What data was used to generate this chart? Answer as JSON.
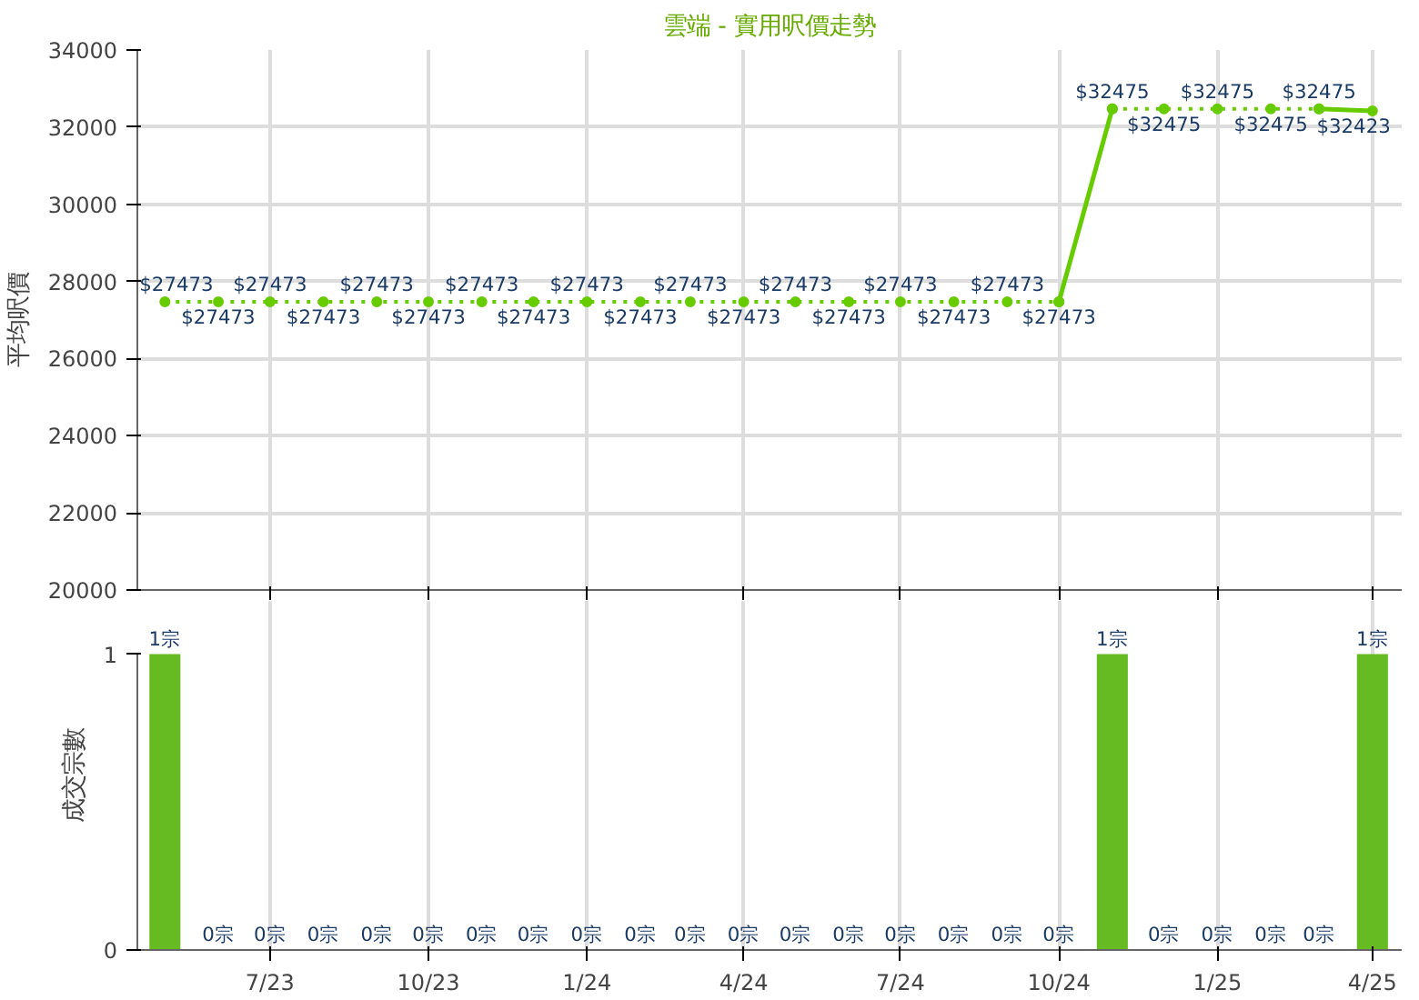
{
  "chart_data": [
    {
      "type": "line",
      "title": "雲端 - 實用呎價走勢",
      "ylabel": "平均呎價",
      "xlim": [
        "2023-04-15",
        "2025-04-18"
      ],
      "ylim": [
        20000,
        34000
      ],
      "yticks": [
        20000,
        22000,
        24000,
        26000,
        28000,
        30000,
        32000,
        34000
      ],
      "xticks": [
        {
          "value": "2023-07",
          "label": null
        },
        {
          "value": "2023-10",
          "label": null
        },
        {
          "value": "2024-01",
          "label": null
        },
        {
          "value": "2024-04",
          "label": null
        },
        {
          "value": "2024-07",
          "label": null
        },
        {
          "value": "2024-10",
          "label": null
        },
        {
          "value": "2025-01",
          "label": null
        },
        {
          "value": "2025-04",
          "label": null
        }
      ],
      "tick_labels": "y",
      "grid": true,
      "marker": "circle",
      "series": [
        {
          "color": "#66cc00",
          "line_style": "dotted",
          "x": [
            "2023-05",
            "2023-06",
            "2023-07",
            "2023-08",
            "2023-09",
            "2023-10",
            "2023-11",
            "2023-12",
            "2024-01",
            "2024-02",
            "2024-03",
            "2024-04",
            "2024-05",
            "2024-06",
            "2024-07",
            "2024-08",
            "2024-09",
            "2024-10"
          ],
          "values": [
            27473,
            27473,
            27473,
            27473,
            27473,
            27473,
            27473,
            27473,
            27473,
            27473,
            27473,
            27473,
            27473,
            27473,
            27473,
            27473,
            27473,
            27473
          ],
          "value_labels": [
            "$27473",
            "$27473",
            "$27473",
            "$27473",
            "$27473",
            "$27473",
            "$27473",
            "$27473",
            "$27473",
            "$27473",
            "$27473",
            "$27473",
            "$27473",
            "$27473",
            "$27473",
            "$27473",
            "$27473",
            "$27473"
          ]
        },
        {
          "color": "#66cc00",
          "line_style": "dotted",
          "x": [
            "2024-11",
            "2024-12",
            "2025-01",
            "2025-02",
            "2025-03"
          ],
          "values": [
            32475,
            32475,
            32475,
            32475,
            32475
          ],
          "value_labels": [
            "$32475",
            "$32475",
            "$32475",
            "$32475",
            "$32475"
          ]
        },
        {
          "color": "#66cc00",
          "line_style": "solid",
          "x": [
            "2024-10",
            "2024-11"
          ],
          "values": [
            27473,
            32475
          ]
        },
        {
          "color": "#66cc00",
          "line_style": "solid",
          "x": [
            "2025-03",
            "2025-04"
          ],
          "values": [
            32475,
            32423
          ],
          "value_labels": [
            null,
            "$32423"
          ]
        }
      ]
    },
    {
      "type": "bar",
      "ylabel": "成交宗數",
      "color": "#66bb22",
      "xlim": [
        "2023-04-15",
        "2025-04-18"
      ],
      "ylim": [
        0,
        1
      ],
      "yticks": [
        0,
        1
      ],
      "xticks": [
        {
          "value": "2023-07",
          "label": "7/23"
        },
        {
          "value": "2023-10",
          "label": "10/23"
        },
        {
          "value": "2024-01",
          "label": "1/24"
        },
        {
          "value": "2024-04",
          "label": "4/24"
        },
        {
          "value": "2024-07",
          "label": "7/24"
        },
        {
          "value": "2024-10",
          "label": "10/24"
        },
        {
          "value": "2025-01",
          "label": "1/25"
        },
        {
          "value": "2025-04",
          "label": "4/25"
        }
      ],
      "grid": "x",
      "x": [
        "2023-05",
        "2023-06",
        "2023-07",
        "2023-08",
        "2023-09",
        "2023-10",
        "2023-11",
        "2023-12",
        "2024-01",
        "2024-02",
        "2024-03",
        "2024-04",
        "2024-05",
        "2024-06",
        "2024-07",
        "2024-08",
        "2024-09",
        "2024-10",
        "2024-11",
        "2024-12",
        "2025-01",
        "2025-02",
        "2025-03",
        "2025-04"
      ],
      "values": [
        1,
        0,
        0,
        0,
        0,
        0,
        0,
        0,
        0,
        0,
        0,
        0,
        0,
        0,
        0,
        0,
        0,
        0,
        1,
        0,
        0,
        0,
        0,
        1
      ],
      "value_labels": [
        "1宗",
        "0宗",
        "0宗",
        "0宗",
        "0宗",
        "0宗",
        "0宗",
        "0宗",
        "0宗",
        "0宗",
        "0宗",
        "0宗",
        "0宗",
        "0宗",
        "0宗",
        "0宗",
        "0宗",
        "0宗",
        "1宗",
        "0宗",
        "0宗",
        "0宗",
        "0宗",
        "1宗"
      ]
    }
  ]
}
